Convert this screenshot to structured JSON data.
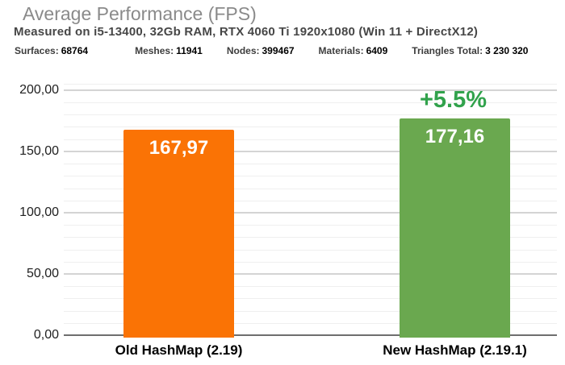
{
  "header": {
    "title": "Average Performance (FPS)",
    "subtitle": "Measured on i5-13400, 32Gb RAM, RTX 4060 Ti 1920x1080 (Win 11 + DirectX12)"
  },
  "stats": [
    {
      "label": "Surfaces:",
      "value": "68764"
    },
    {
      "label": "Meshes:",
      "value": "11941"
    },
    {
      "label": "Nodes:",
      "value": "399467"
    },
    {
      "label": "Materials:",
      "value": "6409"
    },
    {
      "label": "Triangles Total:",
      "value": "3 230 320"
    }
  ],
  "chart_data": {
    "type": "bar",
    "title": "Average Performance (FPS)",
    "subtitle": "Measured on i5-13400, 32Gb RAM, RTX 4060 Ti 1920x1080 (Win 11 + DirectX12)",
    "categories": [
      "Old HashMap (2.19)",
      "New HashMap (2.19.1)"
    ],
    "values": [
      167.97,
      177.16
    ],
    "value_labels": [
      "167,97",
      "177,16"
    ],
    "bar_colors": [
      "#FA7305",
      "#6AA84F"
    ],
    "annotation": {
      "target_index": 1,
      "label": "+5.5%",
      "color": "#31A24C"
    },
    "xlabel": "",
    "ylabel": "",
    "ylim": [
      0,
      200
    ],
    "grid": {
      "major_step": 50,
      "minor_step": 10,
      "visible": true
    },
    "legend": "none",
    "yticks": [
      {
        "value": 0,
        "label": "0,00"
      },
      {
        "value": 50,
        "label": "50,00"
      },
      {
        "value": 100,
        "label": "100,00"
      },
      {
        "value": 150,
        "label": "150,00"
      },
      {
        "value": 200,
        "label": "200,00"
      }
    ]
  }
}
